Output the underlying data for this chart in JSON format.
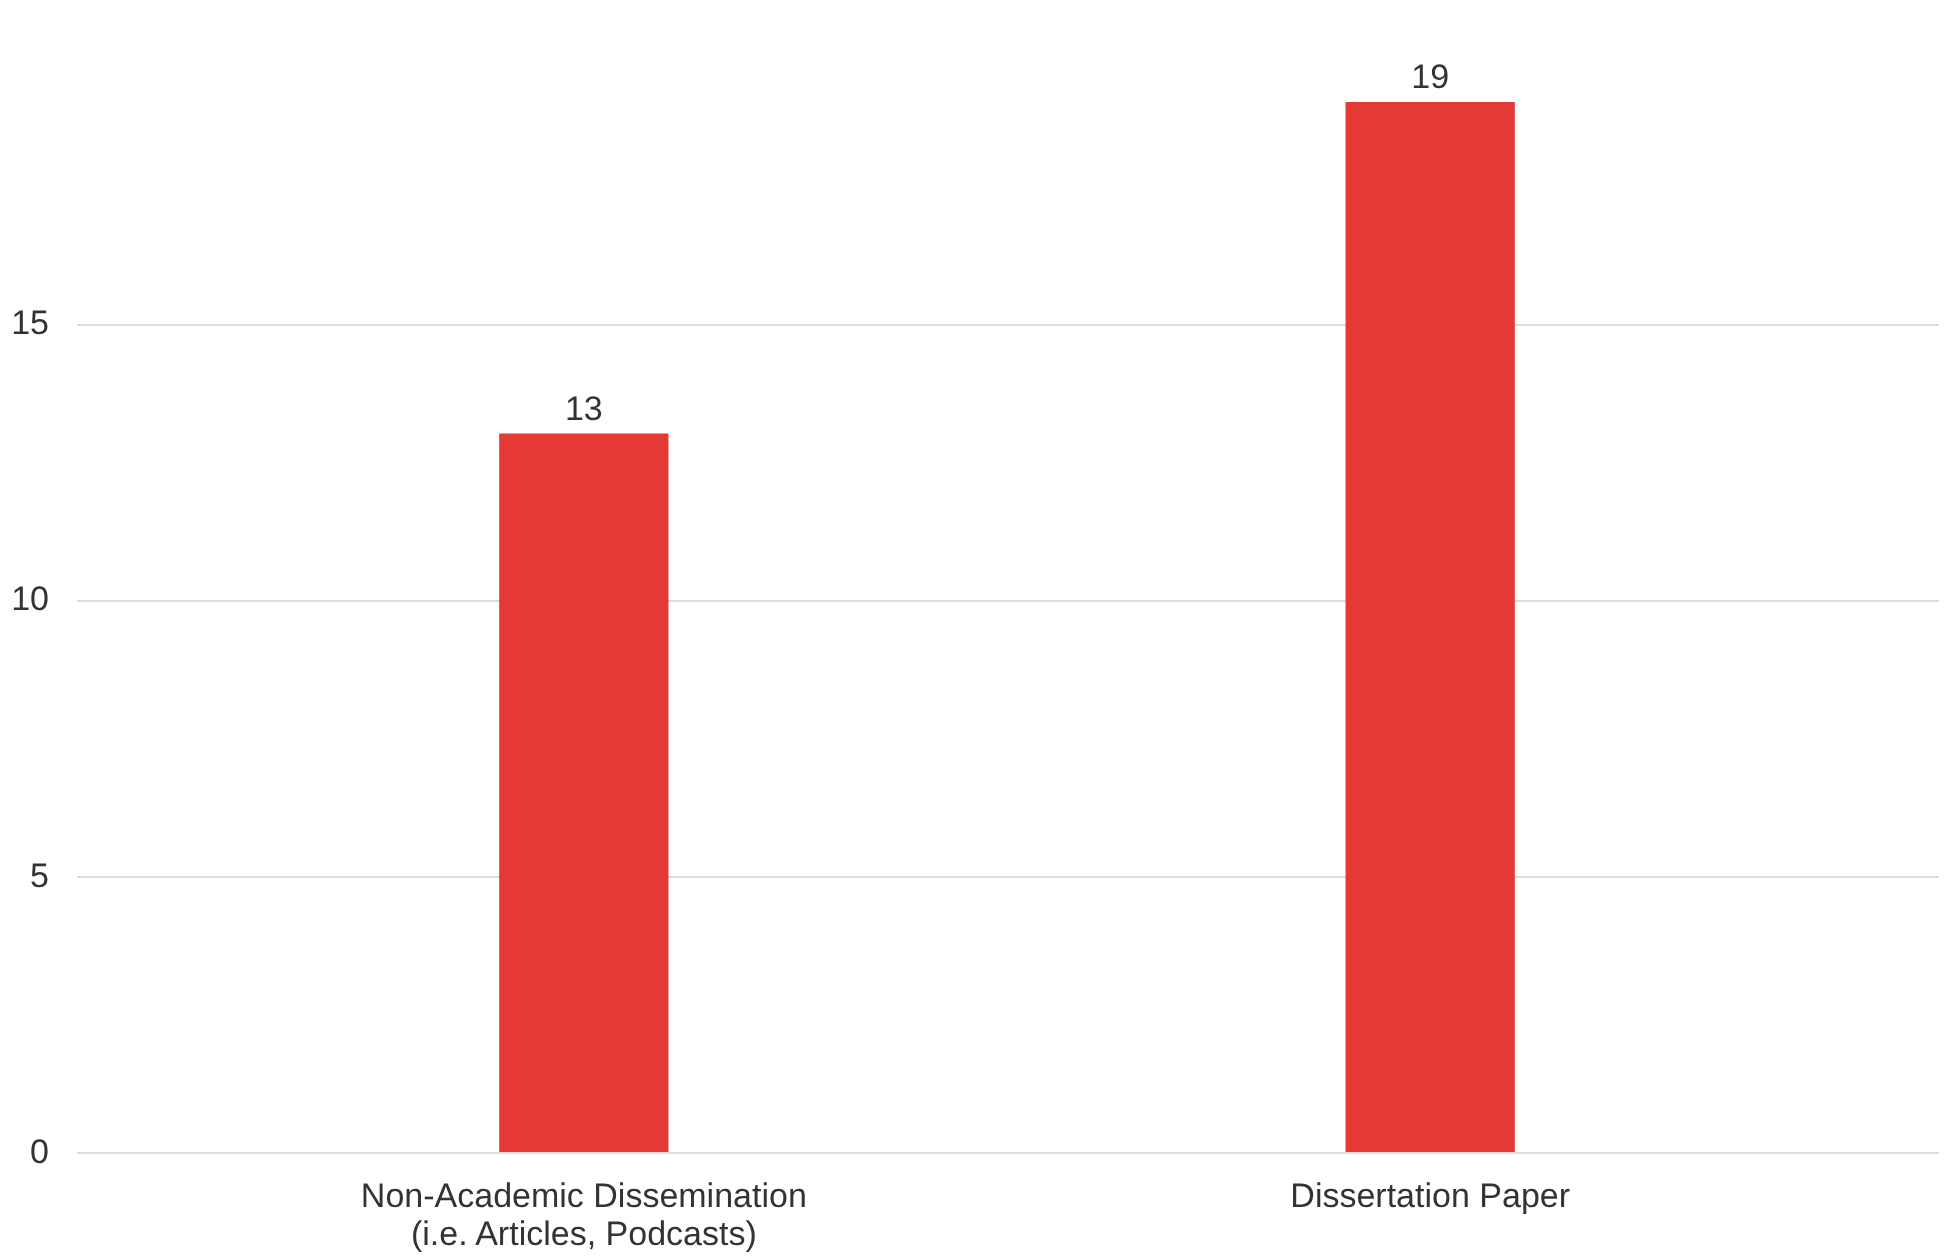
{
  "chart_data": {
    "type": "bar",
    "categories": [
      "Non-Academic Dissemination\n(i.e. Articles, Podcasts)",
      "Dissertation Paper"
    ],
    "values": [
      13,
      19
    ],
    "color": "#e53935",
    "ylim": [
      0,
      19
    ],
    "yticks": [
      0,
      5,
      10,
      15
    ],
    "grid": "y",
    "data_labels": true
  }
}
